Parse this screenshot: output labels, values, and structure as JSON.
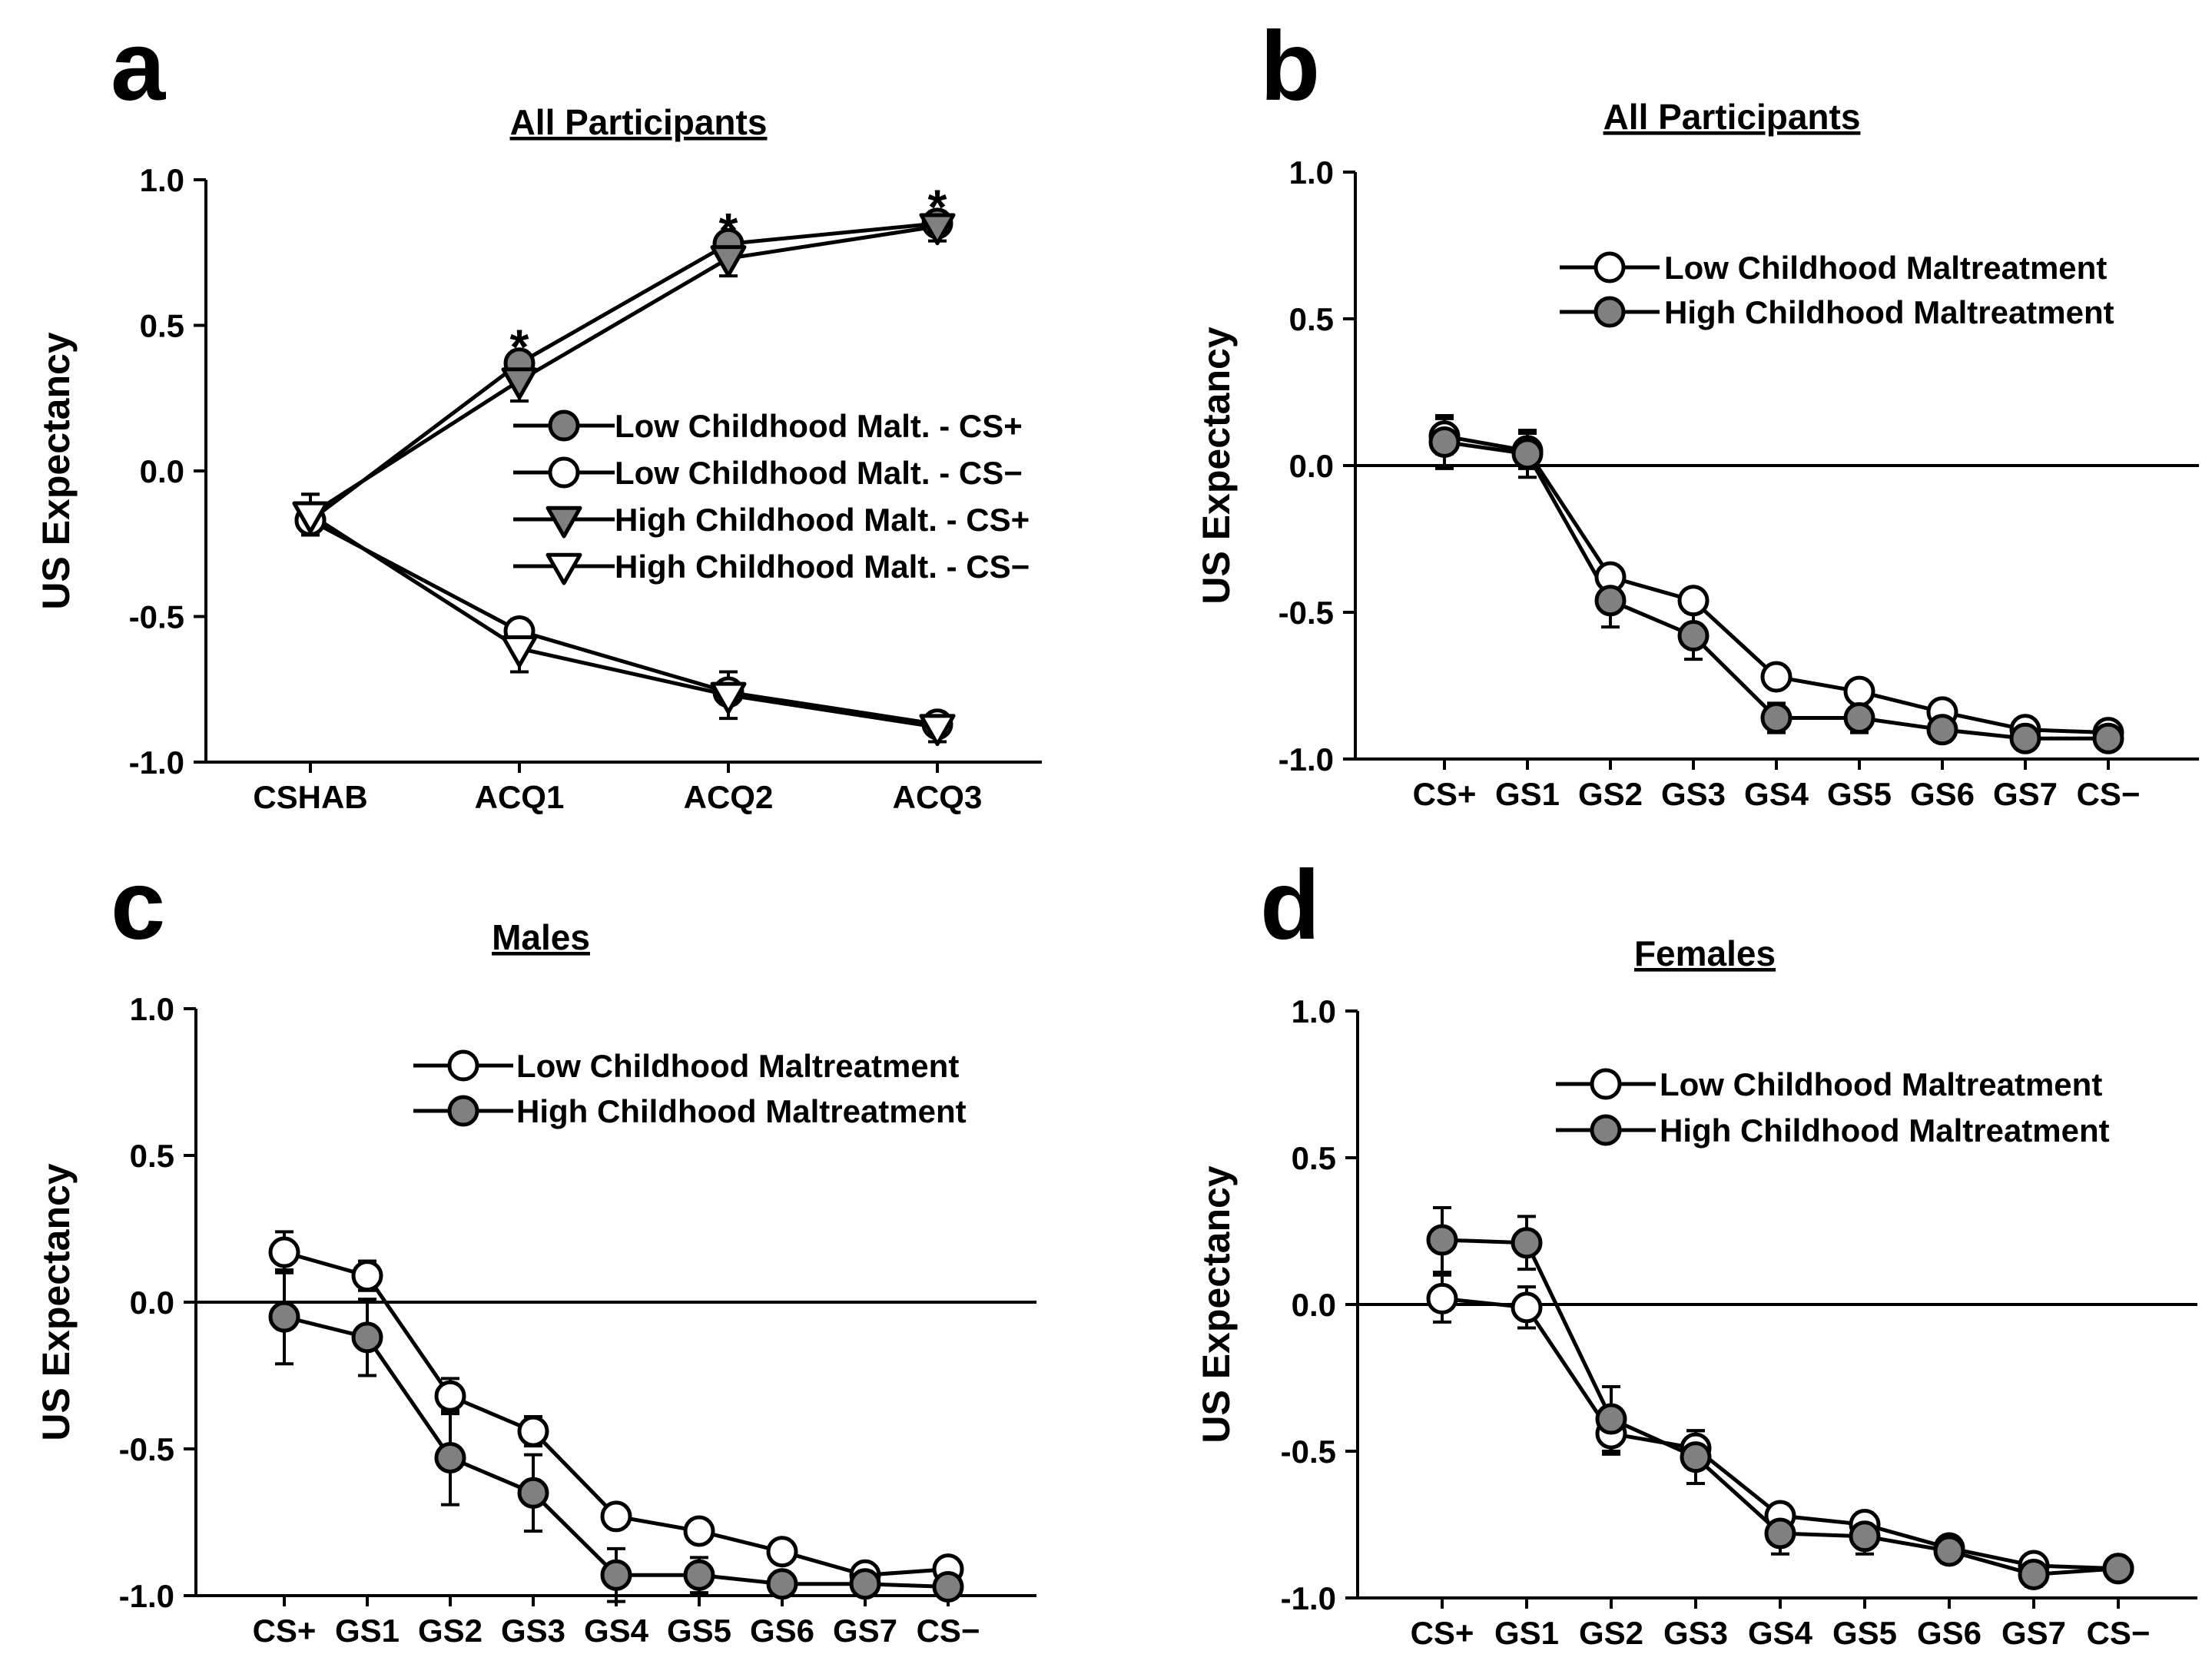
{
  "colors": {
    "filled": "#808080",
    "open": "#ffffff",
    "line": "#000000"
  },
  "chart_data": [
    {
      "panel": "a",
      "type": "line",
      "title": "All Participants",
      "ylabel": "US Expectancy",
      "xlabel": "",
      "ylim": [
        -1.0,
        1.0
      ],
      "yticks": [
        1.0,
        0.5,
        0.0,
        -0.5,
        -1.0
      ],
      "ytick_labels": [
        "1.0",
        "0.5",
        "0.0",
        "-0.5",
        "-1.0"
      ],
      "categories": [
        "CSHAB",
        "ACQ1",
        "ACQ2",
        "ACQ3"
      ],
      "zero_line": false,
      "legend_position": "right",
      "annotations": [
        {
          "text": "*",
          "category": "ACQ1"
        },
        {
          "text": "*",
          "category": "ACQ2"
        },
        {
          "text": "*",
          "category": "ACQ3"
        }
      ],
      "series": [
        {
          "name": "Low Childhood Malt. - CS+",
          "marker": "circle",
          "fill": "filled",
          "values": [
            -0.17,
            0.37,
            0.78,
            0.85
          ],
          "errors": [
            0.05,
            0.04,
            0.03,
            0.03
          ]
        },
        {
          "name": "Low Childhood Malt. - CS−",
          "marker": "circle",
          "fill": "open",
          "values": [
            -0.17,
            -0.55,
            -0.76,
            -0.87
          ],
          "errors": [
            0.05,
            0.04,
            0.04,
            0.02
          ]
        },
        {
          "name": "High Childhood Malt. - CS+",
          "marker": "triangle",
          "fill": "filled",
          "values": [
            -0.15,
            0.31,
            0.73,
            0.84
          ],
          "errors": [
            0.07,
            0.07,
            0.06,
            0.05
          ]
        },
        {
          "name": "High Childhood Malt. - CS−",
          "marker": "triangle",
          "fill": "open",
          "values": [
            -0.15,
            -0.61,
            -0.77,
            -0.88
          ],
          "errors": [
            0.07,
            0.08,
            0.08,
            0.05
          ]
        }
      ]
    },
    {
      "panel": "b",
      "type": "line",
      "title": "All Participants",
      "ylabel": "US Expectancy",
      "xlabel": "",
      "ylim": [
        -1.0,
        1.0
      ],
      "yticks": [
        1.0,
        0.5,
        0.0,
        -0.5,
        -1.0
      ],
      "ytick_labels": [
        "1.0",
        "0.5",
        "0.0",
        "-0.5",
        "-1.0"
      ],
      "categories": [
        "CS+",
        "GS1",
        "GS2",
        "GS3",
        "GS4",
        "GS5",
        "GS6",
        "GS7",
        "CS−"
      ],
      "zero_line": true,
      "legend_position": "top-right",
      "series": [
        {
          "name": "Low Childhood Maltreatment",
          "marker": "circle",
          "fill": "open",
          "values": [
            0.1,
            0.05,
            -0.38,
            -0.46,
            -0.72,
            -0.77,
            -0.84,
            -0.9,
            -0.91
          ],
          "errors": [
            0.06,
            0.06,
            0.04,
            0.03,
            0.03,
            0.03,
            0.03,
            0.02,
            0.02
          ]
        },
        {
          "name": "High Childhood Maltreatment",
          "marker": "circle",
          "fill": "filled",
          "values": [
            0.08,
            0.04,
            -0.46,
            -0.58,
            -0.86,
            -0.86,
            -0.9,
            -0.93,
            -0.93
          ],
          "errors": [
            0.09,
            0.08,
            0.09,
            0.08,
            0.05,
            0.05,
            0.04,
            0.03,
            0.03
          ]
        }
      ]
    },
    {
      "panel": "c",
      "type": "line",
      "title": "Males",
      "ylabel": "US Expectancy",
      "xlabel": "",
      "ylim": [
        -1.0,
        1.0
      ],
      "yticks": [
        1.0,
        0.5,
        0.0,
        -0.5,
        -1.0
      ],
      "ytick_labels": [
        "1.0",
        "0.5",
        "0.0",
        "-0.5",
        "-1.0"
      ],
      "categories": [
        "CS+",
        "GS1",
        "GS2",
        "GS3",
        "GS4",
        "GS5",
        "GS6",
        "GS7",
        "CS−"
      ],
      "zero_line": true,
      "legend_position": "top-right",
      "series": [
        {
          "name": "Low Childhood Maltreatment",
          "marker": "circle",
          "fill": "open",
          "values": [
            0.17,
            0.09,
            -0.32,
            -0.44,
            -0.73,
            -0.78,
            -0.85,
            -0.93,
            -0.91
          ],
          "errors": [
            0.07,
            0.05,
            0.06,
            0.05,
            0.03,
            0.03,
            0.03,
            0.02,
            0.02
          ]
        },
        {
          "name": "High Childhood Maltreatment",
          "marker": "circle",
          "fill": "filled",
          "values": [
            -0.05,
            -0.12,
            -0.53,
            -0.65,
            -0.93,
            -0.93,
            -0.96,
            -0.96,
            -0.97
          ],
          "errors": [
            0.16,
            0.13,
            0.16,
            0.13,
            0.09,
            0.06,
            0.04,
            0.03,
            0.03
          ]
        }
      ]
    },
    {
      "panel": "d",
      "type": "line",
      "title": "Females",
      "ylabel": "US Expectancy",
      "xlabel": "",
      "ylim": [
        -1.0,
        1.0
      ],
      "yticks": [
        1.0,
        0.5,
        0.0,
        -0.5,
        -1.0
      ],
      "ytick_labels": [
        "1.0",
        "0.5",
        "0.0",
        "-0.5",
        "-1.0"
      ],
      "categories": [
        "CS+",
        "GS1",
        "GS2",
        "GS3",
        "GS4",
        "GS5",
        "GS6",
        "GS7",
        "CS−"
      ],
      "zero_line": true,
      "legend_position": "top-right",
      "series": [
        {
          "name": "Low Childhood Maltreatment",
          "marker": "circle",
          "fill": "open",
          "values": [
            0.02,
            -0.01,
            -0.44,
            -0.49,
            -0.72,
            -0.75,
            -0.83,
            -0.89,
            -0.9
          ],
          "errors": [
            0.08,
            0.07,
            0.07,
            0.06,
            0.04,
            0.04,
            0.03,
            0.03,
            0.02
          ]
        },
        {
          "name": "High Childhood Maltreatment",
          "marker": "circle",
          "fill": "filled",
          "values": [
            0.22,
            0.21,
            -0.39,
            -0.52,
            -0.78,
            -0.79,
            -0.84,
            -0.92,
            -0.9
          ],
          "errors": [
            0.11,
            0.09,
            0.11,
            0.09,
            0.07,
            0.06,
            0.04,
            0.04,
            0.03
          ]
        }
      ]
    }
  ]
}
